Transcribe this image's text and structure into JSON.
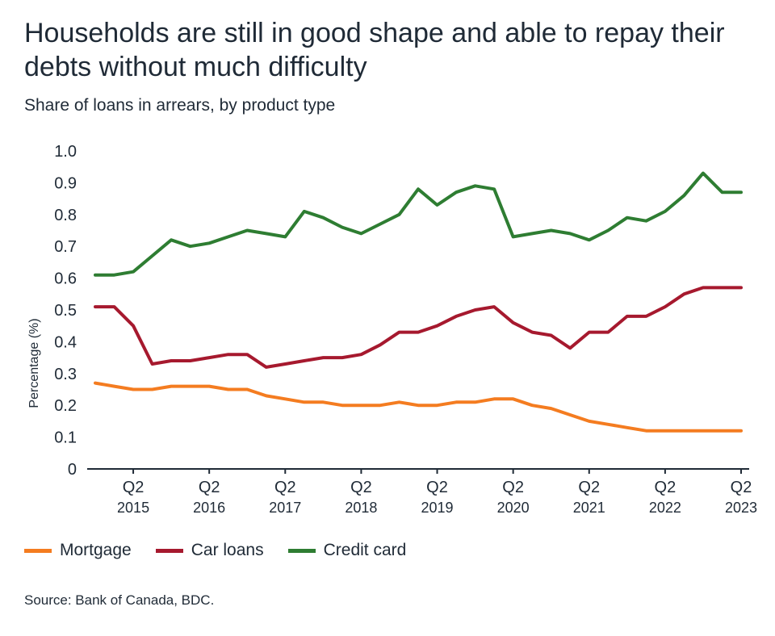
{
  "title": "Households are still in good shape and able to repay their debts without much difficulty",
  "subtitle": "Share of loans in arrears, by product type",
  "source": "Source: Bank of Canada, BDC.",
  "chart_data": {
    "type": "line",
    "title": "Households are still in good shape and able to repay their debts without much difficulty",
    "subtitle": "Share of loans in arrears, by product type",
    "ylabel": "Percentage (%)",
    "xlabel": "",
    "ylim": [
      0,
      1.0
    ],
    "yticks": [
      "0",
      "0.1",
      "0.2",
      "0.3",
      "0.4",
      "0.5",
      "0.6",
      "0.7",
      "0.8",
      "0.9",
      "1.0"
    ],
    "xtick_labels": [
      {
        "quarter": "Q2",
        "year": "2015"
      },
      {
        "quarter": "Q2",
        "year": "2016"
      },
      {
        "quarter": "Q2",
        "year": "2017"
      },
      {
        "quarter": "Q2",
        "year": "2018"
      },
      {
        "quarter": "Q2",
        "year": "2019"
      },
      {
        "quarter": "Q2",
        "year": "2020"
      },
      {
        "quarter": "Q2",
        "year": "2021"
      },
      {
        "quarter": "Q2",
        "year": "2022"
      },
      {
        "quarter": "Q2",
        "year": "2023"
      }
    ],
    "x": [
      "2014Q4",
      "2015Q1",
      "2015Q2",
      "2015Q3",
      "2015Q4",
      "2016Q1",
      "2016Q2",
      "2016Q3",
      "2016Q4",
      "2017Q1",
      "2017Q2",
      "2017Q3",
      "2017Q4",
      "2018Q1",
      "2018Q2",
      "2018Q3",
      "2018Q4",
      "2019Q1",
      "2019Q2",
      "2019Q3",
      "2019Q4",
      "2020Q1",
      "2020Q2",
      "2020Q3",
      "2020Q4",
      "2021Q1",
      "2021Q2",
      "2021Q3",
      "2021Q4",
      "2022Q1",
      "2022Q2",
      "2022Q3",
      "2022Q4",
      "2023Q1",
      "2023Q2"
    ],
    "grid": false,
    "legend_position": "bottom-left",
    "series": [
      {
        "name": "Mortgage",
        "color": "#f47c20",
        "values": [
          0.27,
          0.26,
          0.25,
          0.25,
          0.26,
          0.26,
          0.26,
          0.25,
          0.25,
          0.23,
          0.22,
          0.21,
          0.21,
          0.2,
          0.2,
          0.2,
          0.21,
          0.2,
          0.2,
          0.21,
          0.21,
          0.22,
          0.22,
          0.2,
          0.19,
          0.17,
          0.15,
          0.14,
          0.13,
          0.12,
          0.12,
          0.12,
          0.12,
          0.12,
          0.12
        ]
      },
      {
        "name": "Car loans",
        "color": "#a6192e",
        "values": [
          0.51,
          0.51,
          0.45,
          0.33,
          0.34,
          0.34,
          0.35,
          0.36,
          0.36,
          0.32,
          0.33,
          0.34,
          0.35,
          0.35,
          0.36,
          0.39,
          0.43,
          0.43,
          0.45,
          0.48,
          0.5,
          0.51,
          0.46,
          0.43,
          0.42,
          0.38,
          0.43,
          0.43,
          0.48,
          0.48,
          0.51,
          0.55,
          0.57,
          0.57,
          0.57
        ]
      },
      {
        "name": "Credit card",
        "color": "#2e7d32",
        "values": [
          0.61,
          0.61,
          0.62,
          0.67,
          0.72,
          0.7,
          0.71,
          0.73,
          0.75,
          0.74,
          0.73,
          0.81,
          0.79,
          0.76,
          0.74,
          0.77,
          0.8,
          0.88,
          0.83,
          0.87,
          0.89,
          0.88,
          0.73,
          0.74,
          0.75,
          0.74,
          0.72,
          0.75,
          0.79,
          0.78,
          0.81,
          0.86,
          0.93,
          0.87,
          0.87
        ]
      }
    ]
  }
}
